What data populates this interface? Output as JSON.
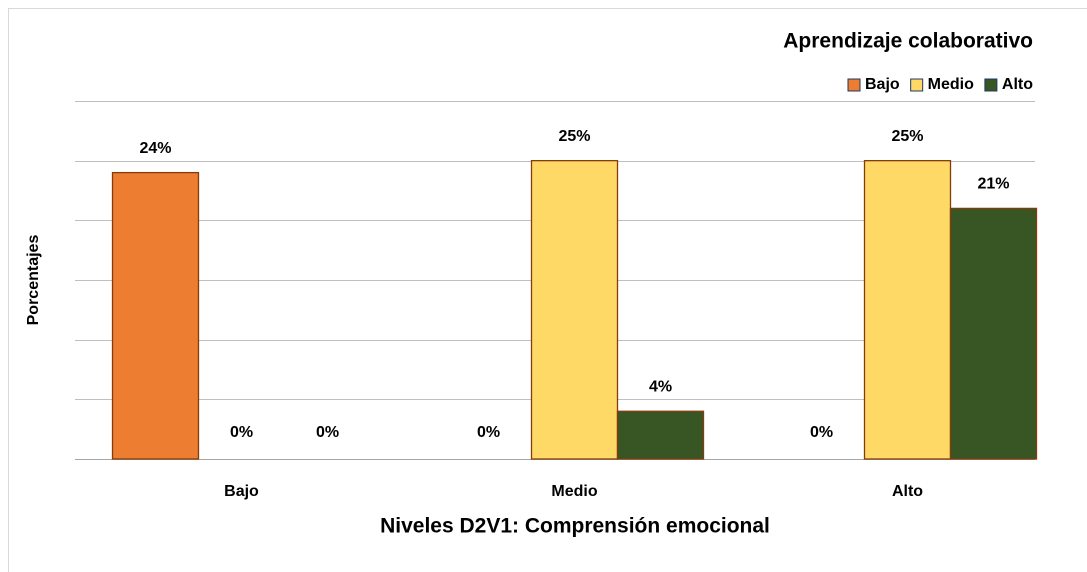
{
  "chart_data": {
    "type": "bar",
    "legend_title": "Aprendizaje colaborativo",
    "xlabel": "Niveles D2V1: Comprensión emocional",
    "ylabel": "Porcentajes",
    "categories": [
      "Bajo",
      "Medio",
      "Alto"
    ],
    "series": [
      {
        "name": "Bajo",
        "color": "#ed7d31",
        "values": [
          24,
          0,
          0
        ],
        "value_labels": [
          "24%",
          "0%",
          "0%"
        ]
      },
      {
        "name": "Medio",
        "color": "#ffd966",
        "values": [
          0,
          25,
          25
        ],
        "value_labels": [
          "0%",
          "25%",
          "25%"
        ]
      },
      {
        "name": "Alto",
        "color": "#375623",
        "values": [
          0,
          4,
          21
        ],
        "value_labels": [
          "0%",
          "4%",
          "21%"
        ]
      }
    ],
    "ylim": [
      0,
      30
    ],
    "yticks": [
      0,
      5,
      10,
      15,
      20,
      25,
      30
    ],
    "grid": true,
    "legend": "top-right"
  }
}
